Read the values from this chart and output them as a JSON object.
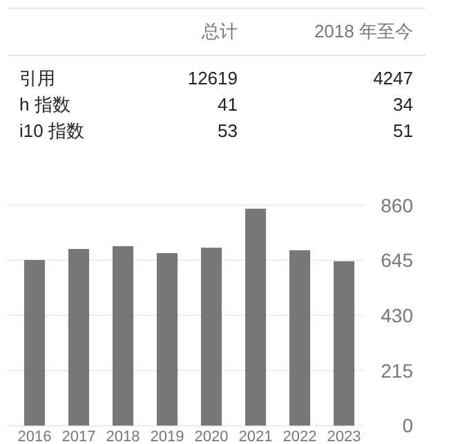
{
  "chart_data": [
    {
      "type": "other",
      "categories": [
        "引用",
        "h 指数",
        "i10 指数"
      ],
      "data_labels": true,
      "series": [
        {
          "name": "总计",
          "values": [
            12619,
            41,
            53
          ]
        },
        {
          "name": "2018 年至今",
          "values": [
            4247,
            34,
            51
          ]
        }
      ]
    },
    {
      "type": "bar",
      "categories": [
        "2016",
        "2017",
        "2018",
        "2019",
        "2020",
        "2021",
        "2022",
        "2023"
      ],
      "values": [
        646,
        689,
        700,
        673,
        694,
        846,
        684,
        641
      ],
      "color": "#777777",
      "ylim": [
        0,
        860
      ],
      "yticks": [
        0,
        215,
        430,
        645,
        860
      ],
      "grid": "y"
    }
  ]
}
